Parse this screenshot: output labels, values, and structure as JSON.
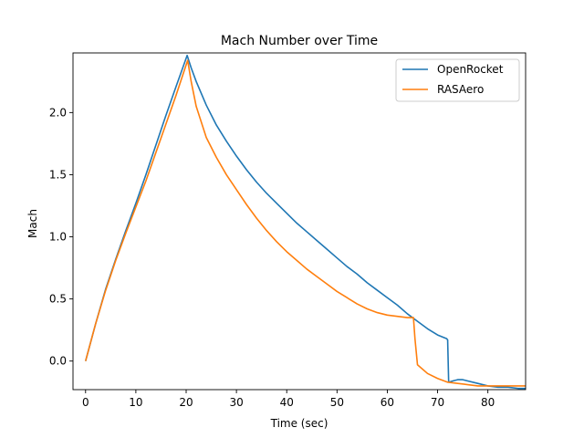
{
  "chart_data": {
    "type": "line",
    "title": "Mach Number over Time",
    "xlabel": "Time (sec)",
    "ylabel": "Mach",
    "xlim": [
      -2.5,
      87.5
    ],
    "ylim": [
      -0.23,
      2.48
    ],
    "xticks": [
      0,
      10,
      20,
      30,
      40,
      50,
      60,
      70,
      80
    ],
    "yticks": [
      0.0,
      0.5,
      1.0,
      1.5,
      2.0
    ],
    "grid": false,
    "legend_position": "top-right",
    "series": [
      {
        "name": "OpenRocket",
        "color": "#1f77b4",
        "x": [
          0,
          2,
          4,
          6,
          8,
          10,
          12,
          14,
          16,
          18,
          20.2,
          21,
          22,
          24,
          26,
          28,
          30,
          32,
          34,
          36,
          38,
          40,
          42,
          44,
          46,
          48,
          50,
          52,
          54,
          56,
          58,
          60,
          62,
          64,
          66,
          68,
          70,
          71.8,
          72,
          72.2,
          73,
          74,
          75,
          76,
          78,
          80,
          82,
          84,
          86,
          87.5
        ],
        "y": [
          0.0,
          0.3,
          0.58,
          0.82,
          1.05,
          1.27,
          1.5,
          1.74,
          1.98,
          2.21,
          2.46,
          2.36,
          2.25,
          2.06,
          1.9,
          1.77,
          1.65,
          1.54,
          1.44,
          1.35,
          1.27,
          1.19,
          1.11,
          1.04,
          0.97,
          0.9,
          0.83,
          0.76,
          0.7,
          0.63,
          0.57,
          0.51,
          0.45,
          0.38,
          0.32,
          0.26,
          0.21,
          0.18,
          0.17,
          -0.17,
          -0.16,
          -0.15,
          -0.15,
          -0.16,
          -0.18,
          -0.2,
          -0.21,
          -0.21,
          -0.22,
          -0.22
        ]
      },
      {
        "name": "RASAero",
        "color": "#ff7f0e",
        "x": [
          0,
          2,
          4,
          6,
          8,
          10,
          12,
          14,
          16,
          18,
          20.3,
          21,
          22,
          24,
          26,
          28,
          30,
          32,
          34,
          36,
          38,
          40,
          42,
          44,
          46,
          48,
          50,
          52,
          54,
          56,
          58,
          60,
          62,
          64,
          65.2,
          65.5,
          66,
          68,
          70,
          72,
          74,
          76,
          78,
          80,
          82,
          84,
          86,
          87.5
        ],
        "y": [
          0.0,
          0.3,
          0.57,
          0.81,
          1.03,
          1.24,
          1.45,
          1.68,
          1.91,
          2.14,
          2.42,
          2.25,
          2.05,
          1.8,
          1.64,
          1.5,
          1.38,
          1.26,
          1.15,
          1.05,
          0.96,
          0.88,
          0.81,
          0.74,
          0.68,
          0.62,
          0.56,
          0.51,
          0.46,
          0.42,
          0.39,
          0.37,
          0.36,
          0.35,
          0.35,
          0.18,
          -0.03,
          -0.1,
          -0.14,
          -0.17,
          -0.18,
          -0.19,
          -0.2,
          -0.2,
          -0.2,
          -0.2,
          -0.2,
          -0.2
        ]
      }
    ]
  }
}
